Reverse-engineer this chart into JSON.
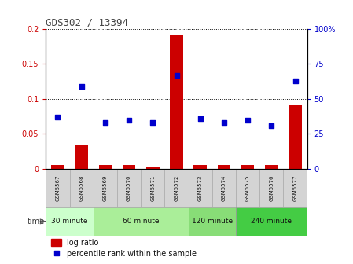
{
  "title": "GDS302 / 13394",
  "samples": [
    "GSM5567",
    "GSM5568",
    "GSM5569",
    "GSM5570",
    "GSM5571",
    "GSM5572",
    "GSM5573",
    "GSM5574",
    "GSM5575",
    "GSM5576",
    "GSM5577"
  ],
  "log_ratio": [
    0.005,
    0.034,
    0.005,
    0.005,
    0.003,
    0.192,
    0.005,
    0.005,
    0.005,
    0.005,
    0.092
  ],
  "percentile_rank": [
    37,
    59,
    33,
    35,
    33,
    67,
    36,
    33,
    35,
    31,
    63
  ],
  "ylim_left": [
    0,
    0.2
  ],
  "ylim_right": [
    0,
    100
  ],
  "yticks_left": [
    0,
    0.05,
    0.1,
    0.15,
    0.2
  ],
  "ytick_labels_left": [
    "0",
    "0.05",
    "0.1",
    "0.15",
    "0.2"
  ],
  "yticks_right": [
    0,
    25,
    50,
    75,
    100
  ],
  "ytick_labels_right": [
    "0",
    "25",
    "50",
    "75",
    "100%"
  ],
  "bar_color": "#cc0000",
  "scatter_color": "#0000cc",
  "grid_color": "#000000",
  "time_groups": [
    {
      "label": "30 minute",
      "start": 0,
      "end": 2,
      "color": "#ccffcc"
    },
    {
      "label": "60 minute",
      "start": 2,
      "end": 6,
      "color": "#aaee99"
    },
    {
      "label": "120 minute",
      "start": 6,
      "end": 8,
      "color": "#88dd77"
    },
    {
      "label": "240 minute",
      "start": 8,
      "end": 11,
      "color": "#44cc44"
    }
  ],
  "time_label": "time",
  "legend_log_ratio": "log ratio",
  "legend_percentile": "percentile rank within the sample",
  "title_color": "#444444",
  "left_axis_color": "#cc0000",
  "right_axis_color": "#0000cc",
  "bg_color": "#ffffff",
  "plot_bg_color": "#ffffff",
  "sample_box_color": "#d4d4d4",
  "sample_box_edge": "#aaaaaa"
}
